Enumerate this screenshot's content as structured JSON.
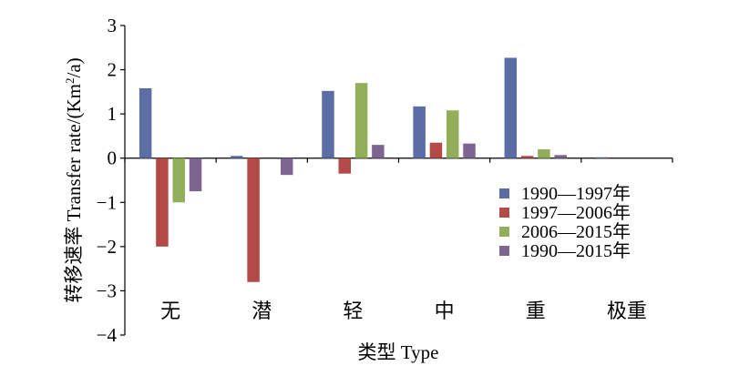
{
  "chart_data": {
    "type": "bar",
    "xlabel": "类型 Type",
    "ylabel_prefix": "转移速率 Transfer rate/(Km",
    "ylabel_sup": "2",
    "ylabel_suffix": "/a)",
    "ylim": [
      -4,
      3
    ],
    "yticks": [
      -4,
      -3,
      -2,
      -1,
      0,
      1,
      2,
      3
    ],
    "ytick_labels": [
      "−4",
      "−3",
      "−2",
      "−1",
      "0",
      "1",
      "2",
      "3"
    ],
    "grid": false,
    "legend_position": "lower-right",
    "categories": [
      "无",
      "潜",
      "轻",
      "中",
      "重",
      "极重"
    ],
    "series": [
      {
        "name": "1990—1997年",
        "color": "#5a6ea5",
        "values": [
          1.58,
          0.05,
          1.52,
          1.17,
          2.27,
          0.02
        ]
      },
      {
        "name": "1997—2006年",
        "color": "#b44a48",
        "values": [
          -2.0,
          -2.8,
          -0.35,
          0.35,
          0.05,
          0.0
        ]
      },
      {
        "name": "2006—2015年",
        "color": "#93ae5a",
        "values": [
          -1.0,
          0.0,
          1.7,
          1.08,
          0.2,
          0.0
        ]
      },
      {
        "name": "1990—2015年",
        "color": "#7e6491",
        "values": [
          -0.75,
          -0.38,
          0.3,
          0.33,
          0.07,
          0.0
        ]
      }
    ]
  }
}
